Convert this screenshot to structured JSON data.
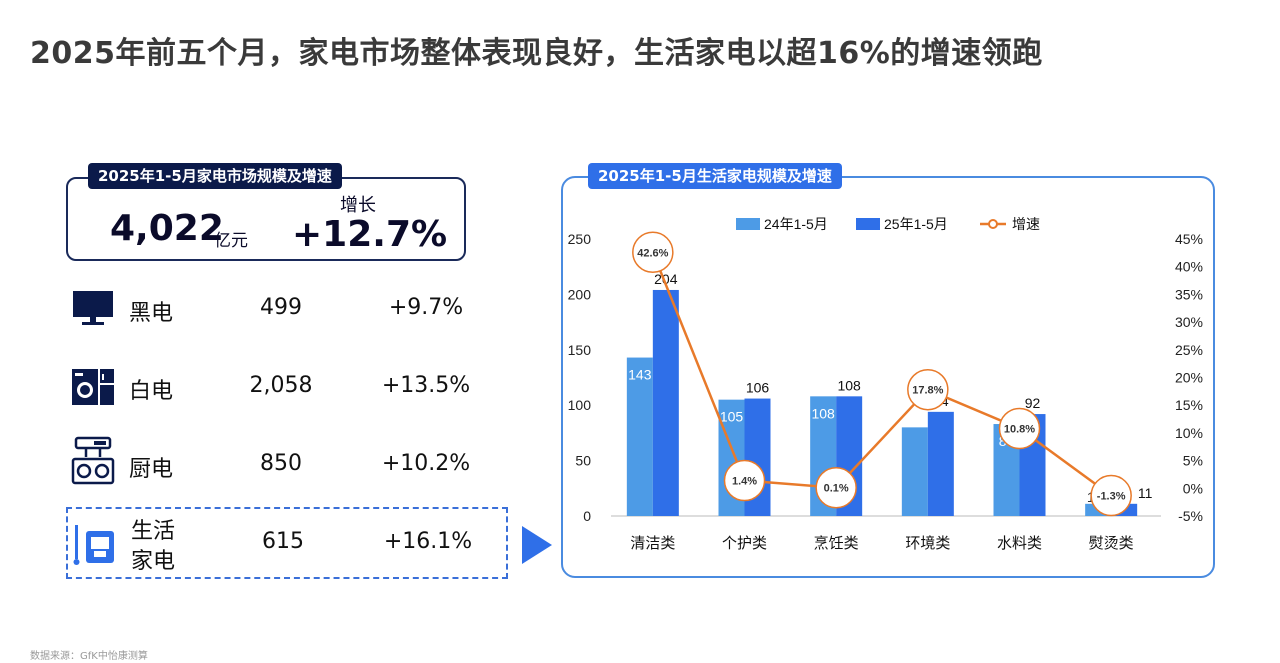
{
  "title": "2025年前五个月，家电市场整体表现良好，生活家电以超16%的增速领跑",
  "summary": {
    "tag": "2025年1-5月家电市场规模及增速",
    "value": "4,022",
    "unit": "亿元",
    "growth_label": "增长",
    "growth": "+12.7%"
  },
  "categories": [
    {
      "name": "黑电",
      "value": "499",
      "growth": "+9.7%",
      "icon": "tv-icon"
    },
    {
      "name": "白电",
      "value": "2,058",
      "growth": "+13.5%",
      "icon": "washer-fridge-icon"
    },
    {
      "name": "厨电",
      "value": "850",
      "growth": "+10.2%",
      "icon": "range-hood-stove-icon"
    },
    {
      "name_line1": "生活",
      "name_line2": "家电",
      "value": "615",
      "growth": "+16.1%",
      "icon": "small-appliance-icon"
    }
  ],
  "chart_title": "2025年1-5月生活家电规模及增速",
  "source": "数据来源：GfK中怡康测算",
  "colors": {
    "bar_2024": "#4d9be6",
    "bar_2025": "#2f6fe8",
    "growth_line": "#e87a2a",
    "dark_navy": "#0b1a4a"
  },
  "chart_data": {
    "type": "bar",
    "categories": [
      "清洁类",
      "个护类",
      "烹饪类",
      "环境类",
      "水料类",
      "熨烫类"
    ],
    "series": [
      {
        "name": "24年1-5月",
        "values": [
          143,
          105,
          108,
          80,
          83,
          11
        ],
        "labels": [
          "143",
          "105",
          "108",
          "",
          "83",
          "11"
        ]
      },
      {
        "name": "25年1-5月",
        "values": [
          204,
          106,
          108,
          94,
          92,
          11
        ],
        "labels": [
          "204",
          "106",
          "108",
          "94",
          "92",
          "11"
        ]
      },
      {
        "name": "增速",
        "type": "line",
        "axis": "right",
        "values": [
          42.6,
          1.4,
          0.1,
          17.8,
          10.8,
          -1.3
        ],
        "labels": [
          "42.6%",
          "1.4%",
          "0.1%",
          "17.8%",
          "10.8%",
          "-1.3%"
        ]
      }
    ],
    "left_axis": {
      "ylim": [
        0,
        250
      ],
      "ticks": [
        "0",
        "50",
        "100",
        "150",
        "200",
        "250"
      ]
    },
    "right_axis": {
      "ylim": [
        -5,
        45
      ],
      "ticks": [
        "-5%",
        "0%",
        "5%",
        "10%",
        "15%",
        "20%",
        "25%",
        "30%",
        "35%",
        "40%",
        "45%"
      ]
    },
    "legend_placement": "top-center",
    "grid": false
  }
}
